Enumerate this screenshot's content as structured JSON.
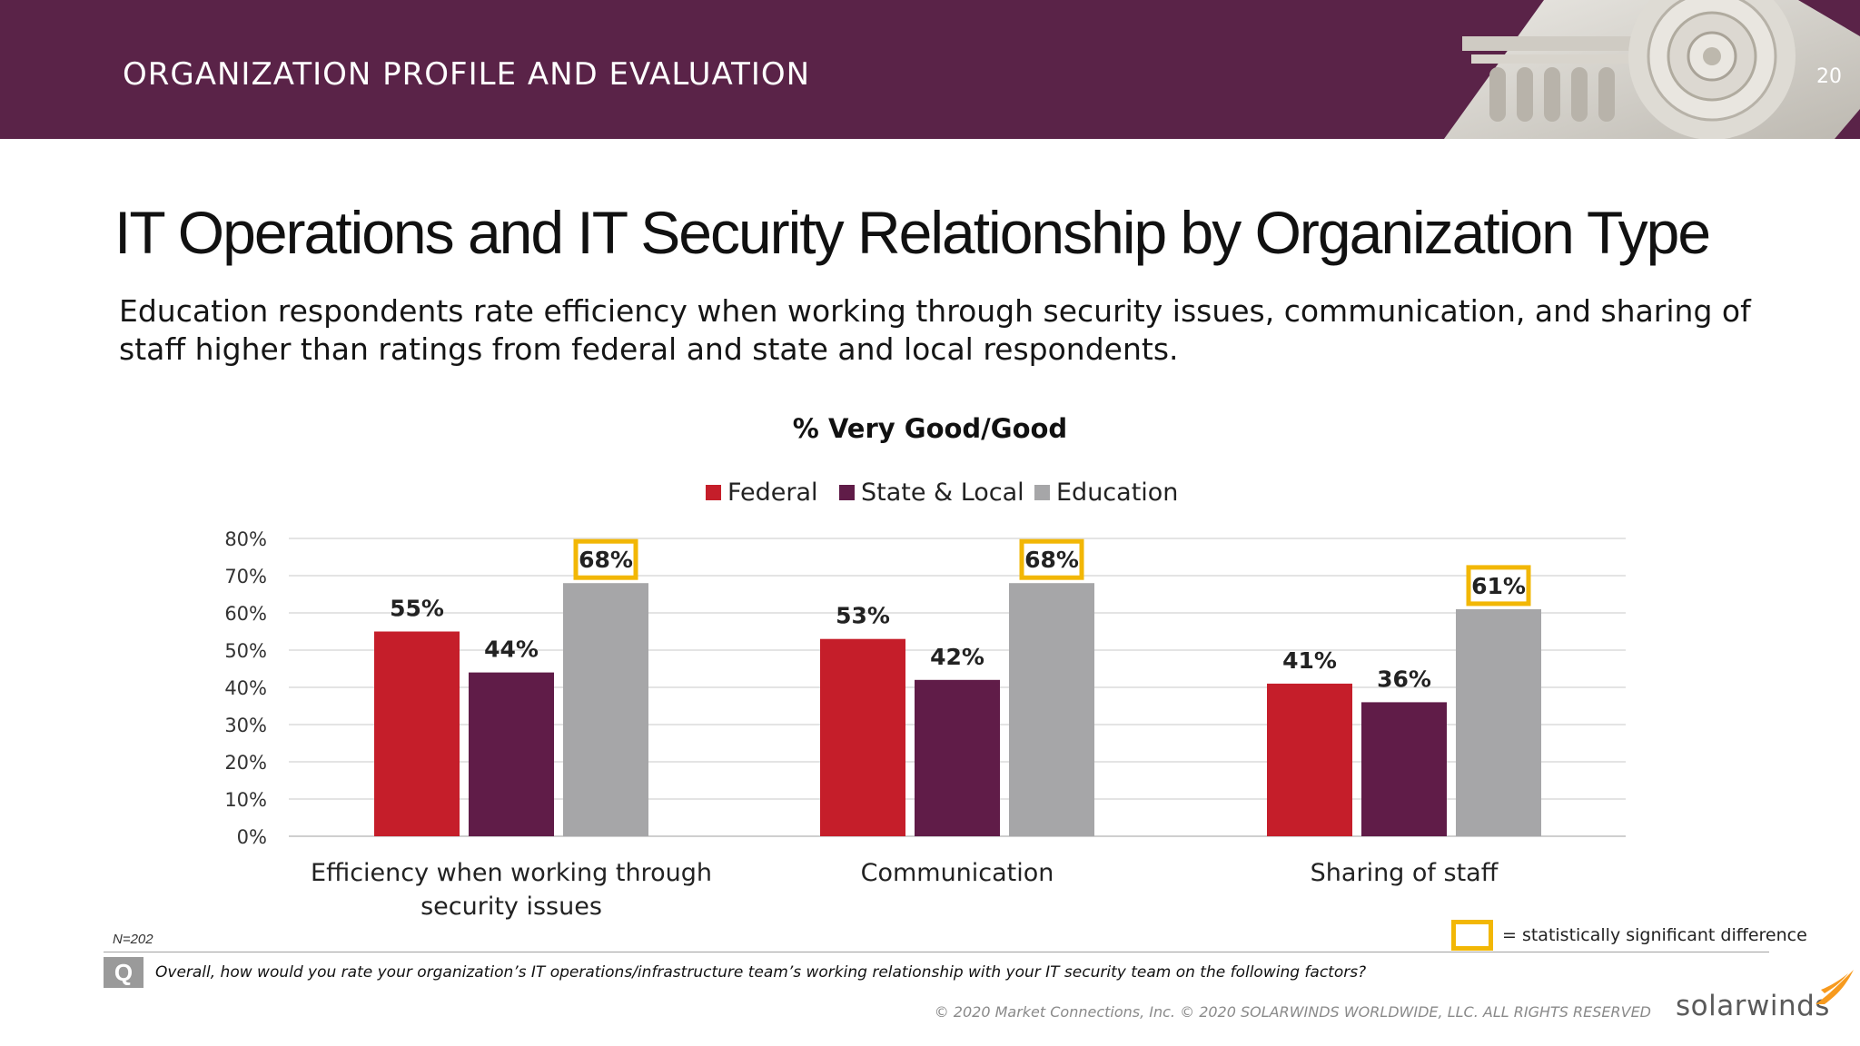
{
  "header": {
    "section_title": "ORGANIZATION PROFILE AND EVALUATION",
    "page_number": "20",
    "background_color": "#5a2348"
  },
  "title": "IT Operations and IT Security Relationship by Organization Type",
  "subtitle": "Education respondents rate efficiency when working through security issues, communication, and sharing of staff higher than ratings from federal and state and local respondents.",
  "chart_data": {
    "type": "bar",
    "title": "% Very Good/Good",
    "categories": [
      [
        "Efficiency when working through",
        "security issues"
      ],
      [
        "Communication"
      ],
      [
        "Sharing of staff"
      ]
    ],
    "series": [
      {
        "name": "Federal",
        "color": "#c51e2a",
        "values": [
          55,
          53,
          41
        ],
        "labels": [
          "55%",
          "53%",
          "41%"
        ]
      },
      {
        "name": "State & Local",
        "color": "#601c48",
        "values": [
          44,
          42,
          36
        ],
        "labels": [
          "44%",
          "42%",
          "36%"
        ]
      },
      {
        "name": "Education",
        "color": "#a6a6a8",
        "values": [
          68,
          68,
          61
        ],
        "labels": [
          "68%",
          "68%",
          "61%"
        ],
        "significant": [
          true,
          true,
          true
        ]
      }
    ],
    "ylim": [
      0,
      80
    ],
    "yticks": [
      "0%",
      "10%",
      "20%",
      "30%",
      "40%",
      "50%",
      "60%",
      "70%",
      "80%"
    ],
    "grid": true,
    "legend_position": "top",
    "significance_color": "#f2b705"
  },
  "significance_note": "= statistically significant difference",
  "footer": {
    "sample_size": "N=202",
    "question_badge": "Q",
    "question": "Overall, how would you rate your organization’s IT operations/infrastructure team’s working relationship with your IT security team on the following factors?",
    "copyright": "© 2020 Market Connections, Inc. © 2020 SOLARWINDS WORLDWIDE, LLC. ALL RIGHTS RESERVED",
    "brand": "solarwinds",
    "brand_color": "#f79a1e"
  }
}
